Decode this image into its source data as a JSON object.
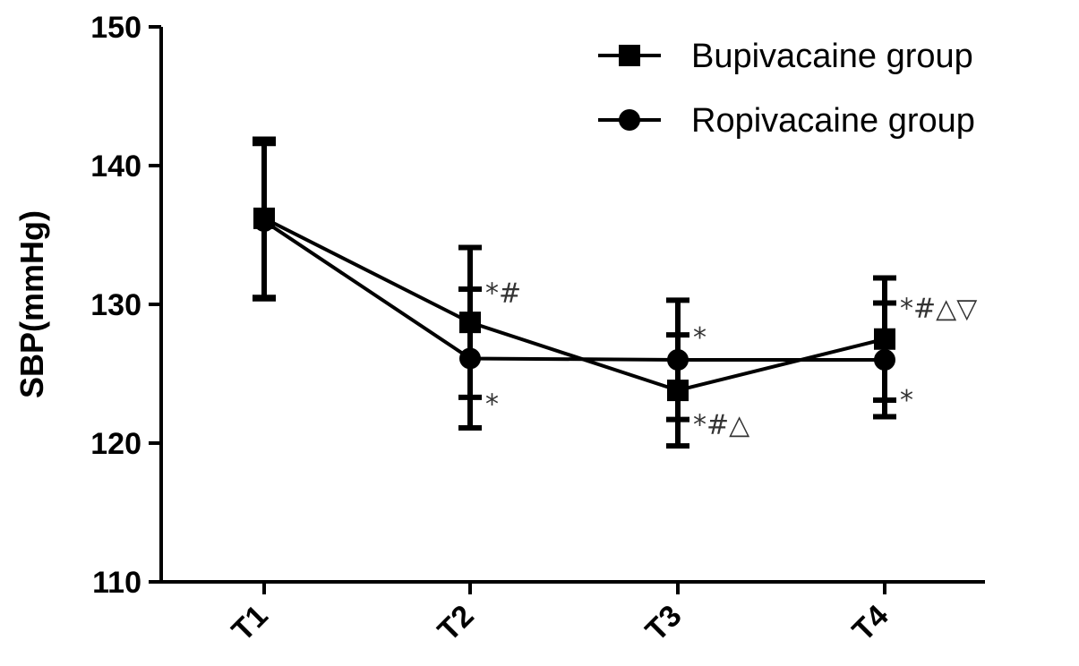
{
  "chart_data": {
    "type": "line",
    "title": "",
    "xlabel": "",
    "ylabel": "SBP(mmHg)",
    "categories": [
      "T1",
      "T2",
      "T3",
      "T4"
    ],
    "ylim": [
      110,
      150
    ],
    "yticks": [
      110,
      120,
      130,
      140,
      150
    ],
    "grid": false,
    "legend_position": "top-right",
    "series": [
      {
        "name": "Bupivacaine group",
        "marker": "square",
        "values": [
          136.2,
          128.7,
          123.8,
          127.5
        ],
        "error": [
          5.7,
          5.4,
          4.0,
          4.4
        ]
      },
      {
        "name": "Ropivacaine group",
        "marker": "circle",
        "values": [
          136.0,
          126.1,
          126.0,
          126.0
        ],
        "error": [
          5.6,
          5.0,
          4.3,
          4.1
        ]
      }
    ],
    "annotations": [
      {
        "category": "T2",
        "y": 131.2,
        "text": "*#"
      },
      {
        "category": "T2",
        "y": 123.2,
        "text": "*"
      },
      {
        "category": "T3",
        "y": 128.0,
        "text": "*"
      },
      {
        "category": "T3",
        "y": 121.7,
        "text": "*#△"
      },
      {
        "category": "T4",
        "y": 130.1,
        "text": "*#△▽"
      },
      {
        "category": "T4",
        "y": 123.5,
        "text": "*"
      }
    ],
    "colors": {
      "line": "#000000",
      "annotation": "#333333"
    }
  }
}
